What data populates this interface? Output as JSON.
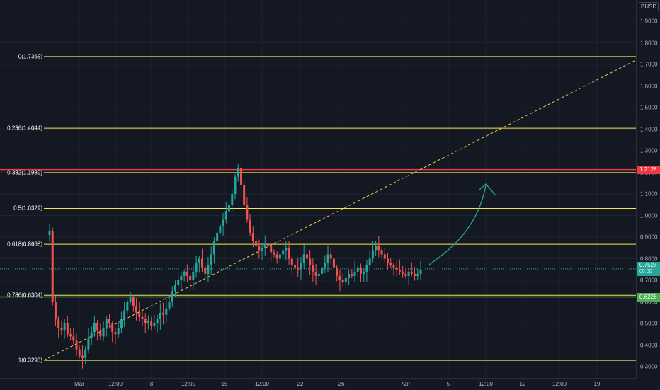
{
  "chart": {
    "currency": "BUSD",
    "price_ticks": [
      "1.9000",
      "1.8000",
      "1.7000",
      "1.6000",
      "1.5000",
      "1.4000",
      "1.3000",
      "1.2000",
      "1.1000",
      "1.0000",
      "0.9000",
      "0.8000",
      "0.7000",
      "0.6000",
      "0.5000",
      "0.4000",
      "0.3000"
    ],
    "price_tick_values": [
      1.9,
      1.8,
      1.7,
      1.6,
      1.5,
      1.4,
      1.3,
      1.2,
      1.1,
      1.0,
      0.9,
      0.8,
      0.7,
      0.6,
      0.5,
      0.4,
      0.3
    ],
    "time_ticks": [
      "Mar",
      "12:00",
      "8",
      "12:00",
      "15",
      "12:00",
      "22",
      "26",
      "Apr",
      "5",
      "12:00",
      "12",
      "12:00",
      "19"
    ],
    "fib_levels": [
      {
        "label": "0(1.7365)",
        "price": 1.7365
      },
      {
        "label": "0.236(1.4044)",
        "price": 1.4044
      },
      {
        "label": "0.382(1.1989)",
        "price": 1.1989
      },
      {
        "label": "0.5(1.0329)",
        "price": 1.0329
      },
      {
        "label": "0.618(0.8668)",
        "price": 0.8668
      },
      {
        "label": "0.786(0.6304)",
        "price": 0.6304
      },
      {
        "label": "1(0.3293)",
        "price": 0.3293
      }
    ],
    "fib_color": "#f2e94e",
    "resistance": {
      "label": "1.2128",
      "price": 1.2128,
      "color": "#f23645"
    },
    "support": {
      "label": "0.6228",
      "price": 0.6228,
      "color": "#4caf50"
    },
    "last_price": {
      "label": "0.7527",
      "sub": "00:00",
      "price": 0.7527,
      "color": "#26a69a"
    },
    "trendline_color": "#f2c94c",
    "arrow_color": "#26a69a",
    "up_color": "#26a69a",
    "down_color": "#ef5350"
  },
  "chart_data": {
    "type": "candlestick",
    "y_range": [
      0.27,
      2.0
    ],
    "closes": [
      0.93,
      0.6,
      0.52,
      0.48,
      0.47,
      0.5,
      0.45,
      0.44,
      0.42,
      0.38,
      0.35,
      0.34,
      0.38,
      0.43,
      0.46,
      0.5,
      0.47,
      0.44,
      0.48,
      0.52,
      0.5,
      0.46,
      0.45,
      0.48,
      0.52,
      0.56,
      0.6,
      0.62,
      0.58,
      0.55,
      0.53,
      0.52,
      0.5,
      0.51,
      0.49,
      0.5,
      0.52,
      0.55,
      0.54,
      0.57,
      0.6,
      0.65,
      0.68,
      0.7,
      0.72,
      0.74,
      0.72,
      0.7,
      0.74,
      0.78,
      0.8,
      0.76,
      0.73,
      0.77,
      0.82,
      0.88,
      0.92,
      0.95,
      0.98,
      1.02,
      1.05,
      1.1,
      1.18,
      1.22,
      1.14,
      1.05,
      0.98,
      0.92,
      0.88,
      0.86,
      0.84,
      0.85,
      0.87,
      0.86,
      0.83,
      0.82,
      0.8,
      0.82,
      0.84,
      0.85,
      0.8,
      0.77,
      0.76,
      0.75,
      0.78,
      0.82,
      0.8,
      0.77,
      0.74,
      0.72,
      0.73,
      0.76,
      0.78,
      0.82,
      0.8,
      0.76,
      0.72,
      0.7,
      0.69,
      0.71,
      0.73,
      0.72,
      0.74,
      0.76,
      0.73,
      0.74,
      0.77,
      0.8,
      0.84,
      0.86,
      0.84,
      0.82,
      0.8,
      0.78,
      0.77,
      0.76,
      0.75,
      0.74,
      0.73,
      0.72,
      0.74,
      0.73,
      0.72,
      0.73,
      0.75
    ]
  }
}
